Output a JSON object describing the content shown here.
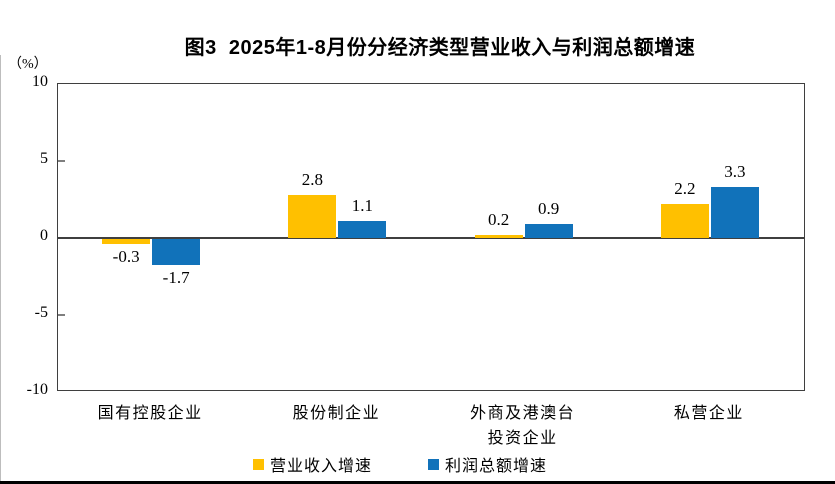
{
  "page": {
    "title": "图3  2025年1-8月份分经济类型营业收入与利润总额增速",
    "unit_label": "（%）"
  },
  "chart_data": {
    "type": "bar",
    "title": "图3  2025年1-8月份分经济类型营业收入与利润总额增速",
    "unit": "（%）",
    "categories": [
      "国有控股企业",
      "股份制企业",
      "外商及港澳台\n投资企业",
      "私营企业"
    ],
    "series": [
      {
        "name": "营业收入增速",
        "color": "#FFC000",
        "values": [
          -0.3,
          2.8,
          0.2,
          2.2
        ]
      },
      {
        "name": "利润总额增速",
        "color": "#1172BA",
        "values": [
          -1.7,
          1.1,
          0.9,
          3.3
        ]
      }
    ],
    "ylim": [
      -10,
      10
    ],
    "yticks": [
      10,
      5,
      0,
      -5,
      -10
    ],
    "grid": false,
    "legend_position": "bottom",
    "value_labels": true
  }
}
